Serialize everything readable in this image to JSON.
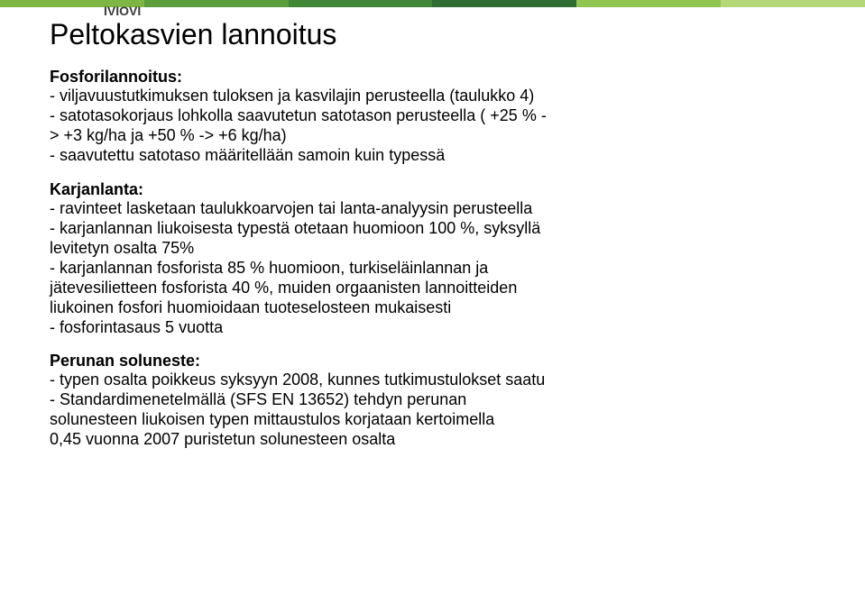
{
  "header": {
    "stripe_colors": [
      "#7db642",
      "#5a9e3d",
      "#418738",
      "#2f6e32",
      "#8ec64f",
      "#b4d77a"
    ],
    "logo_text_partial": "IVIOVI"
  },
  "title": "Peltokasvien lannoitus",
  "sections": {
    "fosforilannoitus": {
      "label": "Fosforilannoitus:",
      "lines": [
        "- viljavuustutkimuksen tuloksen ja kasvilajin perusteella (taulukko 4)",
        "- satotasokorjaus lohkolla saavutetun satotason perusteella ( +25 % -",
        "> +3 kg/ha ja +50 % -> +6 kg/ha)",
        "- saavutettu satotaso määritellään samoin kuin typessä"
      ]
    },
    "karjanlanta": {
      "label": "Karjanlanta:",
      "lines": [
        "- ravinteet lasketaan taulukkoarvojen tai lanta-analyysin perusteella",
        "- karjanlannan liukoisesta typestä otetaan huomioon 100 %, syksyllä",
        "levitetyn osalta 75%",
        "- karjanlannan fosforista 85 % huomioon, turkiseläinlannan ja",
        "jätevesilietteen fosforista 40 %, muiden orgaanisten lannoitteiden",
        "liukoinen fosfori huomioidaan tuoteselosteen mukaisesti",
        "- fosforintasaus 5 vuotta"
      ]
    },
    "perunan": {
      "label": "Perunan soluneste:",
      "lines": [
        "- typen osalta poikkeus syksyyn 2008, kunnes tutkimustulokset saatu",
        "- Standardimenetelmällä (SFS EN 13652) tehdyn perunan",
        "solunesteen liukoisen typen mittaustulos korjataan kertoimella",
        "0,45 vuonna 2007 puristetun solunesteen osalta"
      ]
    }
  }
}
